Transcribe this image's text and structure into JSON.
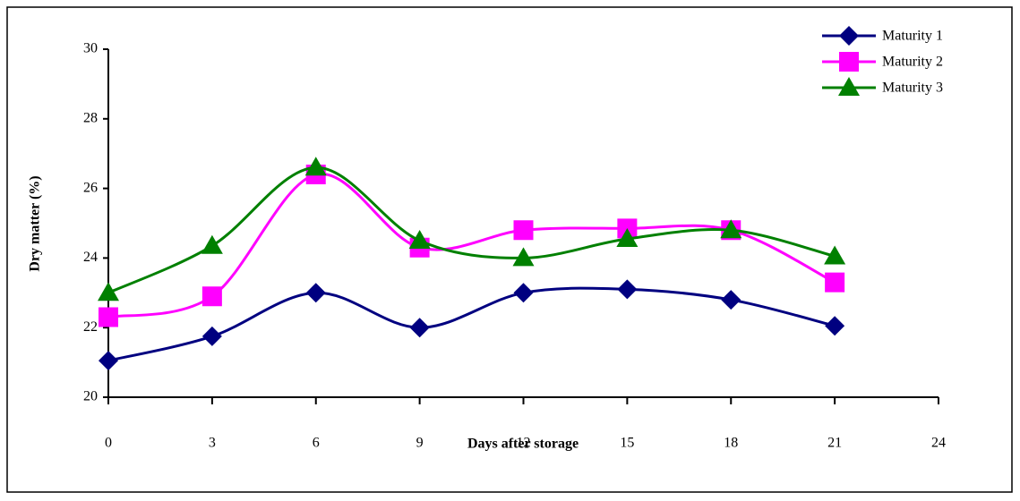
{
  "chart_data": {
    "type": "line",
    "smooth": true,
    "x_label": "Days after storage",
    "y_label": "Dry matter (%)",
    "x": [
      0,
      3,
      6,
      9,
      12,
      15,
      18,
      21
    ],
    "xlim": [
      0,
      24
    ],
    "xticks": [
      0,
      3,
      6,
      9,
      12,
      15,
      18,
      21,
      24
    ],
    "ylim": [
      20,
      30
    ],
    "yticks": [
      20,
      22,
      24,
      26,
      28,
      30
    ],
    "grid": false,
    "legend": "upper right",
    "series": [
      {
        "name": "Maturity 1",
        "color": "#000080",
        "marker": "diamond",
        "values": [
          21.05,
          21.75,
          23.0,
          22.0,
          23.0,
          23.1,
          22.8,
          22.05
        ]
      },
      {
        "name": "Maturity 2",
        "color": "#ff00ff",
        "marker": "square",
        "values": [
          22.3,
          22.9,
          26.4,
          24.3,
          24.8,
          24.85,
          24.8,
          23.3
        ]
      },
      {
        "name": "Maturity 3",
        "color": "#008000",
        "marker": "triangle",
        "values": [
          23.0,
          24.35,
          26.6,
          24.5,
          24.0,
          24.55,
          24.8,
          24.05
        ]
      }
    ]
  }
}
